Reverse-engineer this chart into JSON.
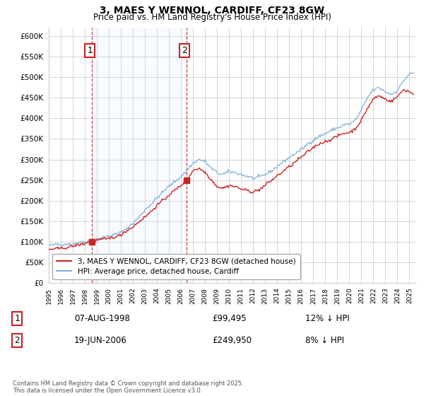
{
  "title": "3, MAES Y WENNOL, CARDIFF, CF23 8GW",
  "subtitle": "Price paid vs. HM Land Registry's House Price Index (HPI)",
  "ylim": [
    0,
    620000
  ],
  "yticks": [
    0,
    50000,
    100000,
    150000,
    200000,
    250000,
    300000,
    350000,
    400000,
    450000,
    500000,
    550000,
    600000
  ],
  "legend_line1": "3, MAES Y WENNOL, CARDIFF, CF23 8GW (detached house)",
  "legend_line2": "HPI: Average price, detached house, Cardiff",
  "hpi_color": "#7eaed4",
  "price_color": "#cc2222",
  "marker_color": "#cc2222",
  "dashed_color": "#cc2222",
  "shade_color": "#ddeeff",
  "transaction1_date": "07-AUG-1998",
  "transaction1_price": "£99,495",
  "transaction1_hpi": "12% ↓ HPI",
  "transaction2_date": "19-JUN-2006",
  "transaction2_price": "£249,950",
  "transaction2_hpi": "8% ↓ HPI",
  "footnote": "Contains HM Land Registry data © Crown copyright and database right 2025.\nThis data is licensed under the Open Government Licence v3.0.",
  "background_color": "#ffffff",
  "grid_color": "#cccccc"
}
